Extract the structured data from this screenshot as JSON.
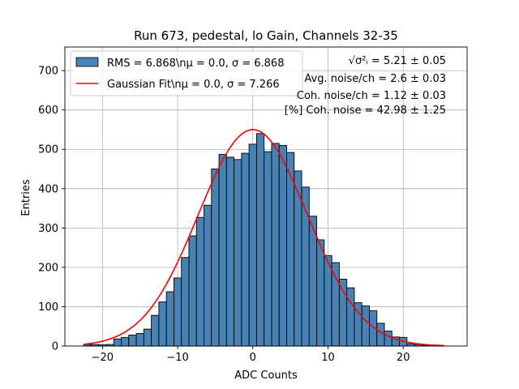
{
  "chart_data": {
    "type": "bar",
    "title": "Run 673, pedestal, lo Gain, Channels 32-35",
    "xlabel": "ADC Counts",
    "ylabel": "Entries",
    "xlim": [
      -25,
      28.5
    ],
    "ylim": [
      0,
      760
    ],
    "xticks": [
      -20,
      -10,
      0,
      10,
      20
    ],
    "xtick_labels": [
      "−20",
      "−10",
      "0",
      "10",
      "20"
    ],
    "yticks": [
      0,
      100,
      200,
      300,
      400,
      500,
      600,
      700
    ],
    "ytick_labels": [
      "0",
      "100",
      "200",
      "300",
      "400",
      "500",
      "600",
      "700"
    ],
    "grid": true,
    "legend_position": "top-left",
    "bins": {
      "start": -22.5,
      "width": 1,
      "values": [
        4,
        4,
        3,
        4,
        18,
        22,
        28,
        32,
        43,
        78,
        112,
        138,
        173,
        225,
        280,
        327,
        358,
        450,
        487,
        480,
        474,
        490,
        513,
        540,
        494,
        515,
        510,
        492,
        445,
        404,
        330,
        270,
        230,
        212,
        170,
        148,
        110,
        102,
        90,
        58,
        38,
        23,
        22,
        6,
        4,
        2,
        0,
        0
      ]
    },
    "histogram": {
      "name": "RMS = 6.868\\nμ = 0.0, σ = 6.868",
      "color": "#4682b4"
    },
    "fit": {
      "name": "Gaussian Fit\\nμ = 0.0, σ = 7.266",
      "mu": 0.0,
      "sigma": 7.266,
      "amplitude": 550,
      "x_range": [
        -22.5,
        25.5
      ],
      "color": "#ff0000"
    },
    "annotations": [
      {
        "lhs": "√σ²ᵢ",
        "text": " = 5.21 ± 0.05"
      },
      {
        "text": "Avg. noise/ch = 2.6 ± 0.03"
      },
      {
        "text": "Coh. noise/ch = 1.12 ± 0.03"
      },
      {
        "text": "[%] Coh. noise = 42.98 ± 1.25"
      }
    ]
  }
}
